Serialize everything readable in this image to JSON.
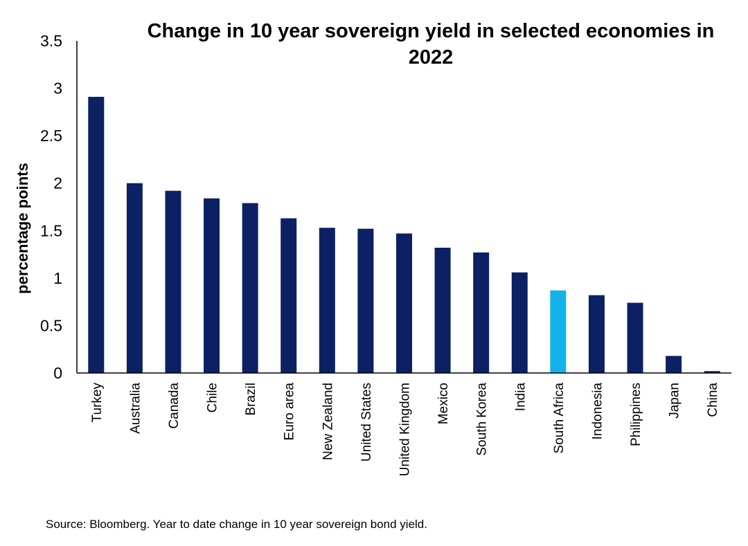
{
  "chart_data": {
    "type": "bar",
    "title_line1": "Change in 10 year sovereign yield in selected economies in",
    "title_line2": "2022",
    "xlabel": "",
    "ylabel": "percentage points",
    "ylim": [
      0,
      3.5
    ],
    "yticks": [
      "0",
      "0.5",
      "1",
      "1.5",
      "2",
      "2.5",
      "3",
      "3.5"
    ],
    "categories": [
      "Turkey",
      "Australia",
      "Canada",
      "Chile",
      "Brazil",
      "Euro area",
      "New Zealand",
      "United States",
      "United Kingdom",
      "Mexico",
      "South Korea",
      "India",
      "South Africa",
      "Indonesia",
      "Philippines",
      "Japan",
      "China"
    ],
    "values": [
      2.91,
      2.0,
      1.92,
      1.84,
      1.79,
      1.63,
      1.53,
      1.52,
      1.47,
      1.32,
      1.27,
      1.06,
      0.87,
      0.82,
      0.74,
      0.18,
      0.02
    ],
    "colors": {
      "default": "#0b2164",
      "highlight": "#14b2ea",
      "highlight_category": "South Africa"
    },
    "grid": false,
    "legend": "none"
  },
  "footer": {
    "source": "Source: Bloomberg. Year to date change in 10 year sovereign bond yield."
  }
}
